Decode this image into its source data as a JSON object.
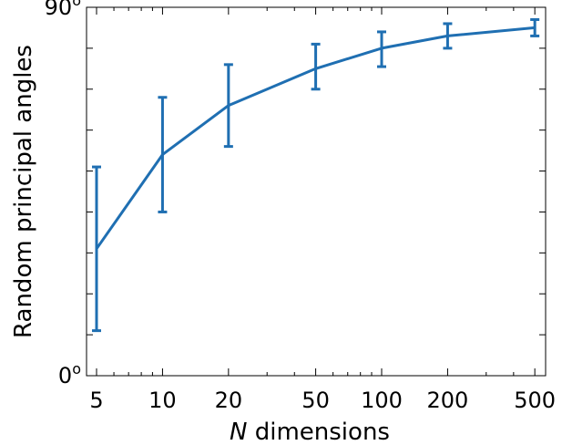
{
  "chart_data": {
    "type": "line",
    "xlabel": "N dimensions",
    "xlabel_italic_part": "N",
    "xlabel_rest": " dimensions",
    "ylabel": "Random principal angles",
    "x_scale": "log",
    "xlim": [
      4.5,
      560
    ],
    "ylim": [
      0,
      90
    ],
    "x_ticks": [
      5,
      10,
      20,
      50,
      100,
      200,
      500
    ],
    "x_tick_labels": [
      "5",
      "10",
      "20",
      "50",
      "100",
      "200",
      "500"
    ],
    "y_tick_labels": [
      {
        "value": 0,
        "base": "0",
        "sup": "o"
      },
      {
        "value": 90,
        "base": "90",
        "sup": "o"
      }
    ],
    "series": [
      {
        "color": "#1f6fb2",
        "x": [
          5,
          10,
          20,
          50,
          100,
          200,
          500
        ],
        "y": [
          31,
          54,
          66,
          75,
          80,
          83,
          85
        ],
        "y_err_low": [
          11,
          40,
          56,
          70,
          75.5,
          80,
          83
        ],
        "y_err_high": [
          51,
          68,
          76,
          81,
          84,
          86,
          87
        ]
      }
    ],
    "grid": false,
    "ticks_direction": "in"
  }
}
